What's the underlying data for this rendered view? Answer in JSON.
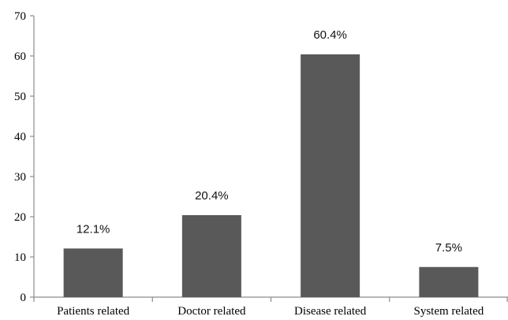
{
  "chart_data": {
    "type": "bar",
    "categories": [
      "Patients related",
      "Doctor related",
      "Disease related",
      "System related"
    ],
    "values": [
      12.1,
      20.4,
      60.4,
      7.5
    ],
    "data_labels": [
      "12.1%",
      "20.4%",
      "60.4%",
      "7.5%"
    ],
    "ylim": [
      0,
      70
    ],
    "yticks": [
      "0",
      "10",
      "20",
      "30",
      "40",
      "50",
      "60",
      "70"
    ],
    "ytick_values": [
      0,
      10,
      20,
      30,
      40,
      50,
      60,
      70
    ],
    "grid": false,
    "bar_color": "#595959",
    "axis_color": "#8c8c8c"
  }
}
